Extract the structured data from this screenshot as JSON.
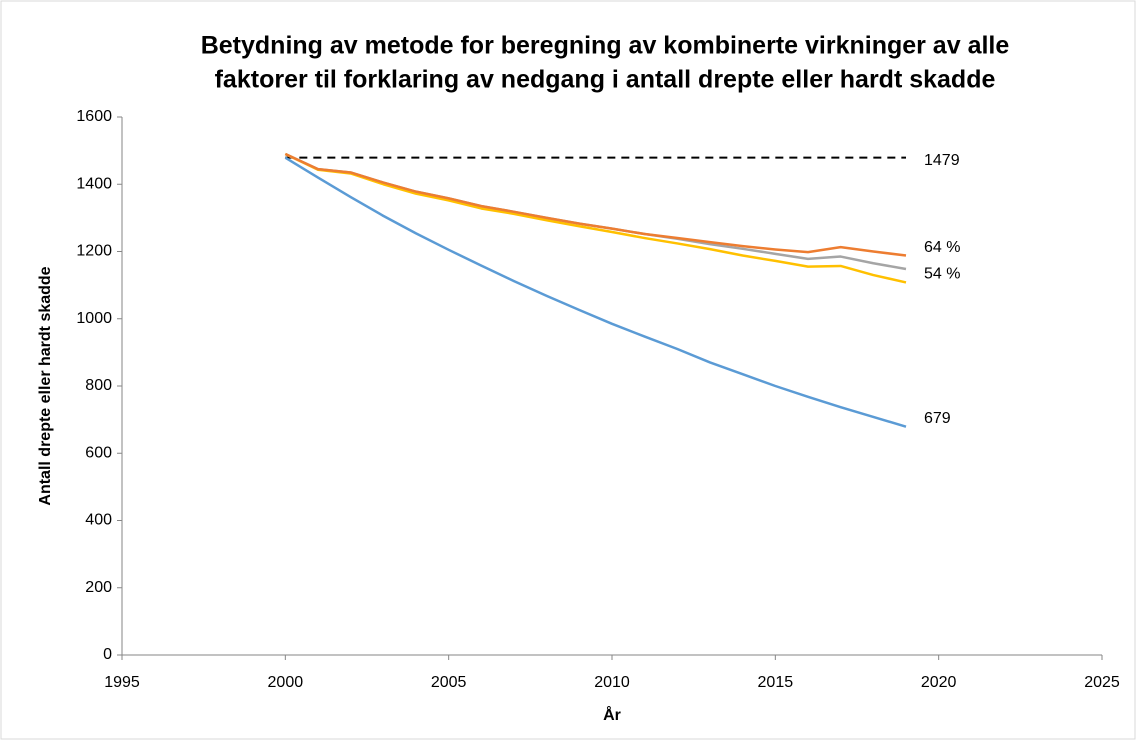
{
  "chart_data": {
    "type": "line",
    "title": [
      "Betydning av metode for beregning av kombinerte virkninger av alle",
      "faktorer til forklaring av nedgang i antall drepte eller hardt skadde"
    ],
    "x_label": "År",
    "y_label": "Antall drepte eller hardt skadde",
    "x": [
      2000,
      2001,
      2002,
      2003,
      2004,
      2005,
      2006,
      2007,
      2008,
      2009,
      2010,
      2011,
      2012,
      2013,
      2014,
      2015,
      2016,
      2017,
      2018,
      2019
    ],
    "xlim": [
      1995,
      2025
    ],
    "xticks": [
      1995,
      2000,
      2005,
      2010,
      2015,
      2020,
      2025
    ],
    "ylim": [
      0,
      1600
    ],
    "yticks": [
      0,
      200,
      400,
      600,
      800,
      1000,
      1200,
      1400,
      1600
    ],
    "grid": false,
    "series": [
      {
        "color": "#000000",
        "dashed": true,
        "label": "1479",
        "values": [
          1479,
          1479,
          1479,
          1479,
          1479,
          1479,
          1479,
          1479,
          1479,
          1479,
          1479,
          1479,
          1479,
          1479,
          1479,
          1479,
          1479,
          1479,
          1479,
          1479
        ]
      },
      {
        "color": "#5b9bd5",
        "label": "679",
        "values": [
          1479,
          1420,
          1362,
          1306,
          1254,
          1205,
          1158,
          1112,
          1068,
          1026,
          985,
          947,
          910,
          870,
          835,
          800,
          768,
          737,
          708,
          679
        ]
      },
      {
        "color": "#a5a5a5",
        "values": [
          1490,
          1445,
          1435,
          1405,
          1378,
          1358,
          1335,
          1318,
          1300,
          1283,
          1268,
          1252,
          1238,
          1222,
          1208,
          1193,
          1178,
          1185,
          1165,
          1148
        ]
      },
      {
        "color": "#ffc000",
        "label": "54 %",
        "values": [
          1490,
          1443,
          1432,
          1400,
          1372,
          1352,
          1328,
          1312,
          1293,
          1275,
          1258,
          1240,
          1224,
          1207,
          1188,
          1172,
          1155,
          1157,
          1130,
          1108
        ]
      },
      {
        "color": "#ed7d31",
        "label": "64 %",
        "values": [
          1490,
          1445,
          1435,
          1405,
          1378,
          1358,
          1335,
          1318,
          1300,
          1283,
          1268,
          1252,
          1240,
          1228,
          1216,
          1206,
          1198,
          1213,
          1200,
          1188
        ]
      }
    ]
  }
}
